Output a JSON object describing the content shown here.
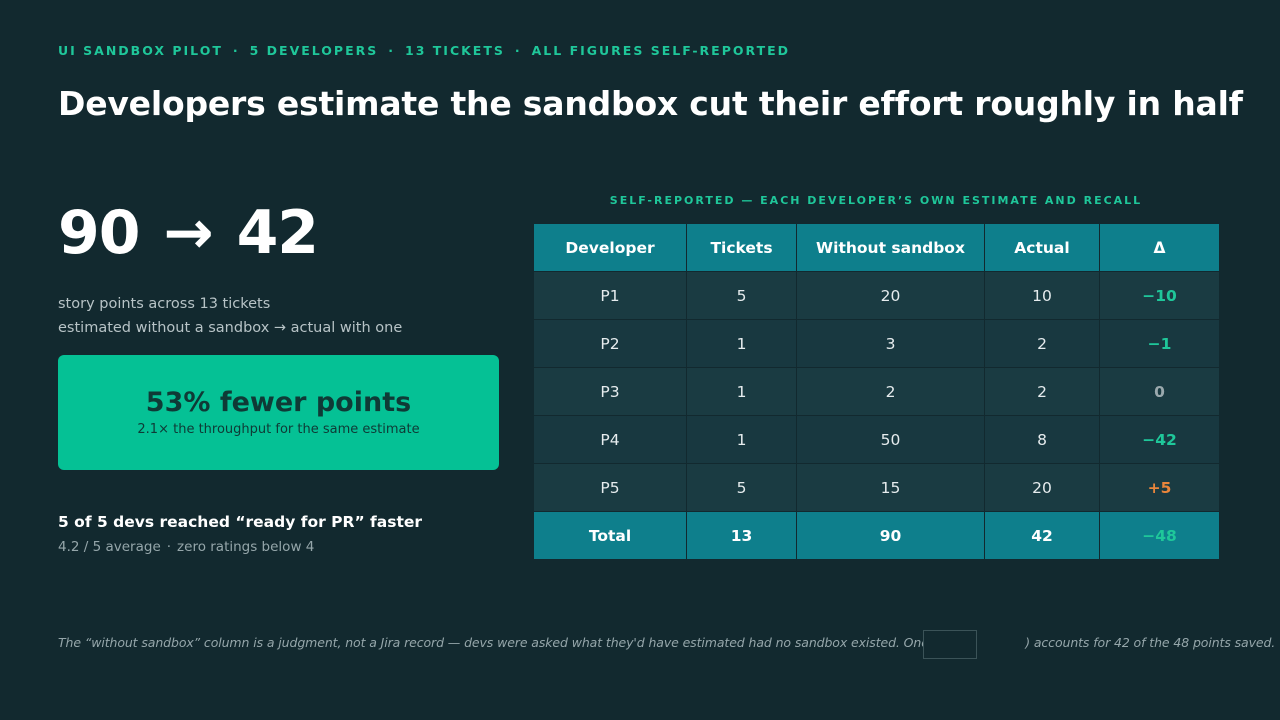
{
  "kicker": {
    "parts": [
      "UI SANDBOX PILOT",
      "5 DEVELOPERS",
      "13 TICKETS",
      "ALL FIGURES SELF-REPORTED"
    ],
    "separator": "·"
  },
  "headline": "Developers estimate the sandbox cut their effort roughly in half",
  "summary": {
    "before": "90",
    "arrow": "→",
    "after": "42",
    "desc_line1": "story points across 13 tickets",
    "desc_line2": "estimated without a sandbox → actual with one"
  },
  "highlight": {
    "title": "53% fewer points",
    "subtitle": "2.1× the throughput for the same estimate"
  },
  "ready": {
    "title": "5 of 5 devs reached “ready for PR” faster",
    "sub_a": "4.2 / 5 average",
    "sub_sep": "·",
    "sub_b": "zero ratings below 4"
  },
  "table": {
    "caption": "SELF-REPORTED — EACH DEVELOPER’S OWN ESTIMATE AND RECALL",
    "headers": [
      "Developer",
      "Tickets",
      "Without sandbox",
      "Actual",
      "Δ"
    ],
    "rows": [
      {
        "developer": "P1",
        "tickets": "5",
        "without": "20",
        "actual": "10",
        "delta": "−10"
      },
      {
        "developer": "P2",
        "tickets": "1",
        "without": "3",
        "actual": "2",
        "delta": "−1"
      },
      {
        "developer": "P3",
        "tickets": "1",
        "without": "2",
        "actual": "2",
        "delta": "0"
      },
      {
        "developer": "P4",
        "tickets": "1",
        "without": "50",
        "actual": "8",
        "delta": "−42"
      },
      {
        "developer": "P5",
        "tickets": "5",
        "without": "15",
        "actual": "20",
        "delta": "+5"
      }
    ],
    "total": {
      "developer": "Total",
      "tickets": "13",
      "without": "90",
      "actual": "42",
      "delta": "−48"
    }
  },
  "colors": {
    "background": "#12292f",
    "accent": "#1fc79a",
    "highlight_card": "#05c195",
    "table_header": "#0e7f8c",
    "positive_delta": "#e8853b"
  },
  "footnote": {
    "before": "The “without sandbox” column is a judgment, not a Jira record — devs were asked what they'd have estimated had no sandbox existed. One ticket",
    "after": ") accounts for 42 of the 48 points saved."
  }
}
